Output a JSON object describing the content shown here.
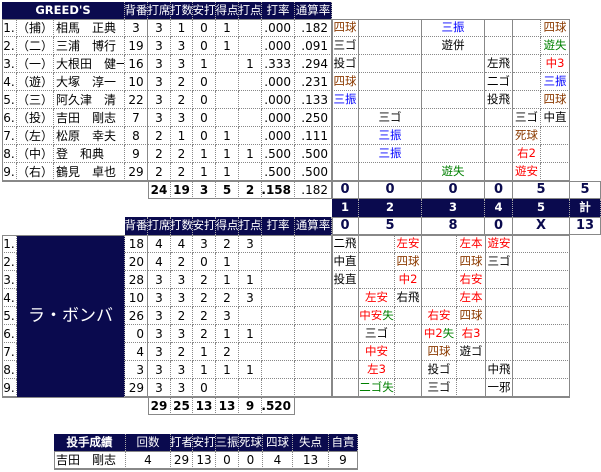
{
  "colors": {
    "header_bg": "#0a0a4e",
    "hit": "#ff0000",
    "strikeout": "#0000ff",
    "walk": "#8b3a00",
    "error": "#008000",
    "out": "#000000"
  },
  "headers": {
    "no": "背番",
    "pa": "打席",
    "ab": "打数",
    "h": "安打",
    "r": "得点",
    "rbi": "打点",
    "avg": "打率",
    "season": "通算率"
  },
  "innings": {
    "labels": [
      "1",
      "2",
      "3",
      "4",
      "5",
      "計"
    ]
  },
  "top_team": {
    "name": "GREED'S",
    "players": [
      {
        "order": "1.",
        "pos": "（捕）",
        "name": "相馬　正典",
        "no": "3",
        "pa": "3",
        "ab": "1",
        "h": "0",
        "r": "1",
        "rbi": "",
        "avg": ".000",
        "season": ".182",
        "atbats": [
          "四球",
          "",
          "三振",
          "",
          "",
          "四球"
        ]
      },
      {
        "order": "2.",
        "pos": "（二）",
        "name": "三浦　博行",
        "no": "19",
        "pa": "3",
        "ab": "3",
        "h": "0",
        "r": "1",
        "rbi": "",
        "avg": ".000",
        "season": ".091",
        "atbats": [
          "三ゴ",
          "",
          "遊併",
          "",
          "",
          "遊失"
        ]
      },
      {
        "order": "3.",
        "pos": "（一）",
        "name": "大根田　健一",
        "no": "16",
        "pa": "3",
        "ab": "3",
        "h": "1",
        "r": "",
        "rbi": "1",
        "avg": ".333",
        "season": ".294",
        "atbats": [
          "投ゴ",
          "",
          "",
          "左飛",
          "",
          "中3"
        ]
      },
      {
        "order": "4.",
        "pos": "（遊）",
        "name": "大塚　淳一",
        "no": "10",
        "pa": "3",
        "ab": "2",
        "h": "0",
        "r": "",
        "rbi": "",
        "avg": ".000",
        "season": ".231",
        "atbats": [
          "四球",
          "",
          "",
          "二ゴ",
          "",
          "三振"
        ]
      },
      {
        "order": "5.",
        "pos": "（三）",
        "name": "阿久津　清",
        "no": "22",
        "pa": "3",
        "ab": "2",
        "h": "0",
        "r": "",
        "rbi": "",
        "avg": ".000",
        "season": ".133",
        "atbats": [
          "三振",
          "",
          "",
          "投飛",
          "",
          "四球"
        ]
      },
      {
        "order": "6.",
        "pos": "（投）",
        "name": "吉田　剛志",
        "no": "7",
        "pa": "3",
        "ab": "3",
        "h": "0",
        "r": "",
        "rbi": "",
        "avg": ".000",
        "season": ".250",
        "atbats": [
          "",
          "三ゴ",
          "",
          "",
          "三ゴ",
          "中直"
        ]
      },
      {
        "order": "7.",
        "pos": "（左）",
        "name": "松原　幸夫",
        "no": "8",
        "pa": "2",
        "ab": "1",
        "h": "0",
        "r": "1",
        "rbi": "",
        "avg": ".000",
        "season": ".111",
        "atbats": [
          "",
          "三振",
          "",
          "",
          "死球",
          ""
        ]
      },
      {
        "order": "8.",
        "pos": "（中）",
        "name": "登　和典",
        "no": "9",
        "pa": "2",
        "ab": "2",
        "h": "1",
        "r": "1",
        "rbi": "1",
        "avg": ".500",
        "season": ".500",
        "atbats": [
          "",
          "三振",
          "",
          "",
          "右2",
          ""
        ]
      },
      {
        "order": "9.",
        "pos": "（右）",
        "name": "鶴見　卓也",
        "no": "29",
        "pa": "2",
        "ab": "2",
        "h": "1",
        "r": "1",
        "rbi": "",
        "avg": ".500",
        "season": ".500",
        "atbats": [
          "",
          "",
          "遊失",
          "",
          "遊安",
          ""
        ]
      }
    ],
    "totals": {
      "pa": "24",
      "ab": "19",
      "h": "3",
      "r": "5",
      "rbi": "2",
      "avg": ".158",
      "season": ".182"
    },
    "scores": [
      "0",
      "0",
      "0",
      "0",
      "5",
      "5"
    ]
  },
  "bottom_team": {
    "name": "ラ・ボンバ",
    "players": [
      {
        "order": "1.",
        "no": "18",
        "pa": "4",
        "ab": "4",
        "h": "3",
        "r": "2",
        "rbi": "3",
        "atbats": [
          "二飛",
          "",
          "左安",
          "",
          "左本",
          "遊安",
          ""
        ]
      },
      {
        "order": "2.",
        "no": "20",
        "pa": "4",
        "ab": "2",
        "h": "0",
        "r": "1",
        "rbi": "",
        "atbats": [
          "中直",
          "",
          "四球",
          "",
          "四球",
          "三ゴ",
          ""
        ]
      },
      {
        "order": "3.",
        "no": "28",
        "pa": "3",
        "ab": "3",
        "h": "2",
        "r": "1",
        "rbi": "1",
        "atbats": [
          "投直",
          "",
          "中2",
          "",
          "右安",
          "",
          ""
        ]
      },
      {
        "order": "4.",
        "no": "10",
        "pa": "3",
        "ab": "3",
        "h": "2",
        "r": "2",
        "rbi": "3",
        "atbats": [
          "",
          "左安",
          "右飛",
          "",
          "左本",
          "",
          ""
        ]
      },
      {
        "order": "5.",
        "no": "26",
        "pa": "3",
        "ab": "2",
        "h": "2",
        "r": "3",
        "rbi": "",
        "atbats": [
          "",
          "中安失",
          "",
          "右安",
          "四球",
          "",
          ""
        ]
      },
      {
        "order": "6.",
        "no": "0",
        "pa": "3",
        "ab": "3",
        "h": "2",
        "r": "1",
        "rbi": "1",
        "atbats": [
          "",
          "三ゴ",
          "",
          "中2失",
          "右3",
          "",
          ""
        ]
      },
      {
        "order": "7.",
        "no": "4",
        "pa": "3",
        "ab": "2",
        "h": "1",
        "r": "2",
        "rbi": "",
        "atbats": [
          "",
          "中安",
          "",
          "四球",
          "遊ゴ",
          "",
          ""
        ]
      },
      {
        "order": "8.",
        "no": "3",
        "pa": "3",
        "ab": "3",
        "h": "1",
        "r": "1",
        "rbi": "1",
        "atbats": [
          "",
          "左3",
          "",
          "投ゴ",
          "",
          "中飛",
          ""
        ]
      },
      {
        "order": "9.",
        "no": "29",
        "pa": "3",
        "ab": "3",
        "h": "0",
        "r": "",
        "rbi": "",
        "atbats": [
          "",
          "二ゴ失",
          "",
          "三ゴ",
          "",
          "一邪",
          ""
        ]
      }
    ],
    "totals": {
      "pa": "29",
      "ab": "25",
      "h": "13",
      "r": "13",
      "rbi": "9",
      "avg": ".520"
    },
    "scores": [
      "0",
      "5",
      "8",
      "0",
      "X",
      "13"
    ]
  },
  "pitching": {
    "headers": [
      "投手成績",
      "回数",
      "打者",
      "安打",
      "三振",
      "死球",
      "四球",
      "失点",
      "自責"
    ],
    "rows": [
      [
        "吉田　剛志",
        "4",
        "29",
        "13",
        "0",
        "0",
        "4",
        "13",
        "9"
      ]
    ]
  }
}
